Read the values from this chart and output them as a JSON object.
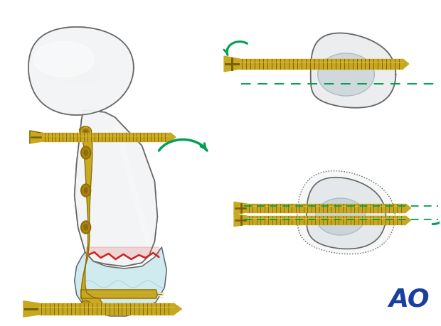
{
  "bg_color": "#ffffff",
  "bone_fill": "#f2f4f5",
  "bone_outline": "#666666",
  "bone_shadow": "#d0dde0",
  "plate_color": "#c8a820",
  "plate_dark": "#8a6f08",
  "plate_light": "#e0c040",
  "screw_color": "#c8a820",
  "screw_dark": "#7a6008",
  "screw_light": "#e8c840",
  "fracture_color": "#cc2222",
  "fracture_fill": "#dd4444",
  "green_color": "#00a050",
  "cartilage_color": "#c8e8ee",
  "condyle_fill": "#ddeef2",
  "ao_blue": "#1a3fa0",
  "wire_color": "#e8e0b0",
  "fig_width": 6.2,
  "fig_height": 4.59,
  "dpi": 100
}
